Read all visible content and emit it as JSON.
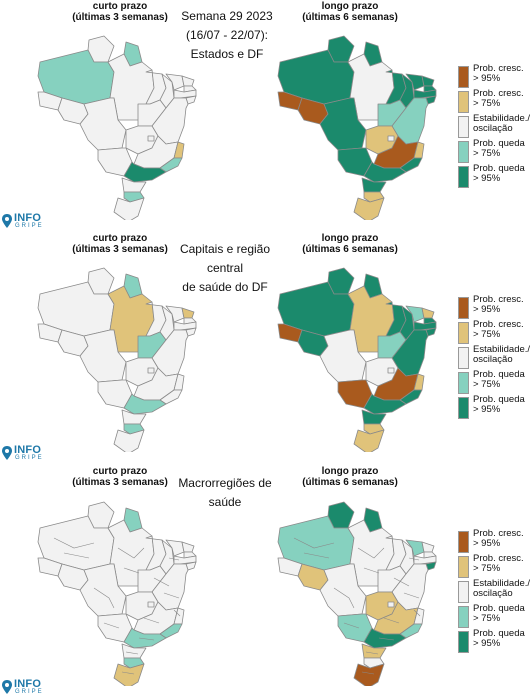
{
  "colors": {
    "up95": "#a95a1e",
    "up75": "#e0c37a",
    "stable": "#f2f2f2",
    "down75": "#86d1bf",
    "down95": "#1b8a6c",
    "border": "#8a8a8a"
  },
  "sections": [
    {
      "title": "Semana 29 2023\n(16/07 - 22/07):\nEstados e DF",
      "short_label": "curto prazo\n(últimas 3 semanas)",
      "long_label": "longo prazo\n(últimas 6 semanas)"
    },
    {
      "title": "Capitais e região central\nde saúde do DF",
      "short_label": "curto prazo\n(últimas 3 semanas)",
      "long_label": "longo prazo\n(últimas 6 semanas)"
    },
    {
      "title": "Macrorregiões de saúde",
      "short_label": "curto prazo\n(últimas 3 semanas)",
      "long_label": "longo prazo\n(últimas 6 semanas)"
    }
  ],
  "legend": [
    {
      "key": "up95",
      "label": "Prob. cresc.\n> 95%"
    },
    {
      "key": "up75",
      "label": "Prob. cresc.\n> 75%"
    },
    {
      "key": "stable",
      "label": "Estabilidade./\noscilação"
    },
    {
      "key": "down75",
      "label": "Prob. queda\n> 75%"
    },
    {
      "key": "down95",
      "label": "Prob. queda\n> 95%"
    }
  ],
  "logo": {
    "text": "INFO",
    "sub": "GRIPE"
  },
  "maps": {
    "states_short": {
      "AM": "down75",
      "RR": "stable",
      "AP": "down75",
      "PA": "stable",
      "AC": "stable",
      "RO": "stable",
      "MT": "stable",
      "TO": "stable",
      "MA": "stable",
      "PI": "stable",
      "CE": "stable",
      "RN": "stable",
      "PB": "stable",
      "PE": "stable",
      "AL": "stable",
      "SE": "stable",
      "BA": "stable",
      "GO": "stable",
      "DF": "stable",
      "MS": "stable",
      "MG": "stable",
      "ES": "up75",
      "RJ": "down75",
      "SP": "down95",
      "PR": "stable",
      "SC": "down75",
      "RS": "stable"
    },
    "states_long": {
      "AM": "down95",
      "RR": "down95",
      "AP": "down95",
      "PA": "stable",
      "AC": "up95",
      "RO": "up95",
      "MT": "down95",
      "TO": "down75",
      "MA": "down95",
      "PI": "down95",
      "CE": "down95",
      "RN": "down95",
      "PB": "down95",
      "PE": "down95",
      "AL": "down95",
      "SE": "down95",
      "BA": "down75",
      "GO": "up75",
      "DF": "stable",
      "MS": "down95",
      "MG": "up95",
      "ES": "up75",
      "RJ": "down95",
      "SP": "down95",
      "PR": "down95",
      "SC": "up75",
      "RS": "up75"
    },
    "capitals_short": {
      "AM": "stable",
      "RR": "stable",
      "AP": "down75",
      "PA": "up75",
      "AC": "stable",
      "RO": "stable",
      "MT": "stable",
      "TO": "down75",
      "MA": "stable",
      "PI": "stable",
      "CE": "stable",
      "RN": "up75",
      "PB": "stable",
      "PE": "stable",
      "AL": "stable",
      "SE": "stable",
      "BA": "stable",
      "GO": "stable",
      "DF": "stable",
      "MS": "stable",
      "MG": "stable",
      "ES": "stable",
      "RJ": "stable",
      "SP": "down75",
      "PR": "stable",
      "SC": "down75",
      "RS": "stable"
    },
    "capitals_long": {
      "AM": "down95",
      "RR": "down95",
      "AP": "down95",
      "PA": "up75",
      "AC": "up95",
      "RO": "down95",
      "MT": "stable",
      "TO": "down75",
      "MA": "down95",
      "PI": "down95",
      "CE": "down75",
      "RN": "up75",
      "PB": "down95",
      "PE": "down95",
      "AL": "down95",
      "SE": "down95",
      "BA": "down95",
      "GO": "stable",
      "DF": "stable",
      "MS": "up95",
      "MG": "up95",
      "ES": "up75",
      "RJ": "down95",
      "SP": "down95",
      "PR": "down95",
      "SC": "up75",
      "RS": "up75"
    },
    "macro_short": {
      "AM": "stable",
      "RR": "stable",
      "AP": "down75",
      "PA": "stable",
      "AC": "stable",
      "RO": "stable",
      "MT": "stable",
      "TO": "stable",
      "MA": "stable",
      "PI": "stable",
      "CE": "stable",
      "RN": "stable",
      "PB": "stable",
      "PE": "stable",
      "AL": "stable",
      "SE": "stable",
      "BA": "stable",
      "GO": "stable",
      "DF": "stable",
      "MS": "stable",
      "MG": "stable",
      "ES": "stable",
      "RJ": "down75",
      "SP": "down75",
      "PR": "stable",
      "SC": "down75",
      "RS": "up75"
    },
    "macro_long": {
      "AM": "down75",
      "RR": "down95",
      "AP": "down95",
      "PA": "stable",
      "AC": "stable",
      "RO": "up75",
      "MT": "stable",
      "TO": "stable",
      "MA": "stable",
      "PI": "stable",
      "CE": "down75",
      "RN": "stable",
      "PB": "stable",
      "PE": "stable",
      "AL": "down95",
      "SE": "stable",
      "BA": "stable",
      "GO": "up75",
      "DF": "stable",
      "MS": "down75",
      "MG": "up75",
      "ES": "stable",
      "RJ": "down75",
      "SP": "down95",
      "PR": "up75",
      "SC": "stable",
      "RS": "up95"
    }
  }
}
